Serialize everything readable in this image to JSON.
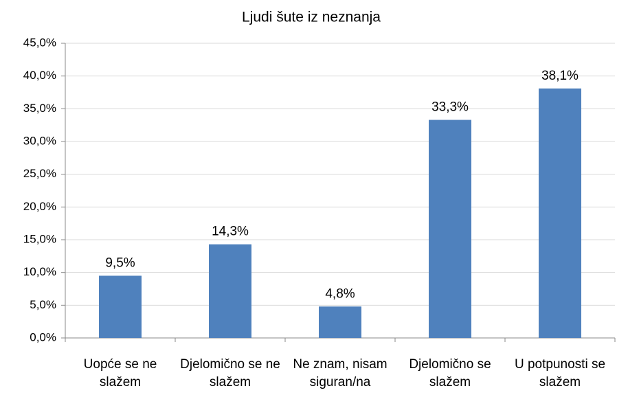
{
  "chart_data": {
    "type": "bar",
    "title": "Ljudi šute iz neznanja",
    "categories": [
      "Uopće se ne slažem",
      "Djelomično se ne slažem",
      "Ne znam, nisam siguran/na",
      "Djelomično se slažem",
      "U potpunosti se slažem"
    ],
    "values": [
      9.5,
      14.3,
      4.8,
      33.3,
      38.1
    ],
    "value_labels": [
      "9,5%",
      "14,3%",
      "4,8%",
      "33,3%",
      "38,1%"
    ],
    "color": "#4f81bd",
    "ylim": [
      0,
      45
    ],
    "yticks": [
      {
        "value": 0,
        "label": "0,0%"
      },
      {
        "value": 5,
        "label": "5,0%"
      },
      {
        "value": 10,
        "label": "10,0%"
      },
      {
        "value": 15,
        "label": "15,0%"
      },
      {
        "value": 20,
        "label": "20,0%"
      },
      {
        "value": 25,
        "label": "25,0%"
      },
      {
        "value": 30,
        "label": "30,0%"
      },
      {
        "value": 35,
        "label": "35,0%"
      },
      {
        "value": 40,
        "label": "40,0%"
      },
      {
        "value": 45,
        "label": "45,0%"
      }
    ],
    "grid": true
  }
}
